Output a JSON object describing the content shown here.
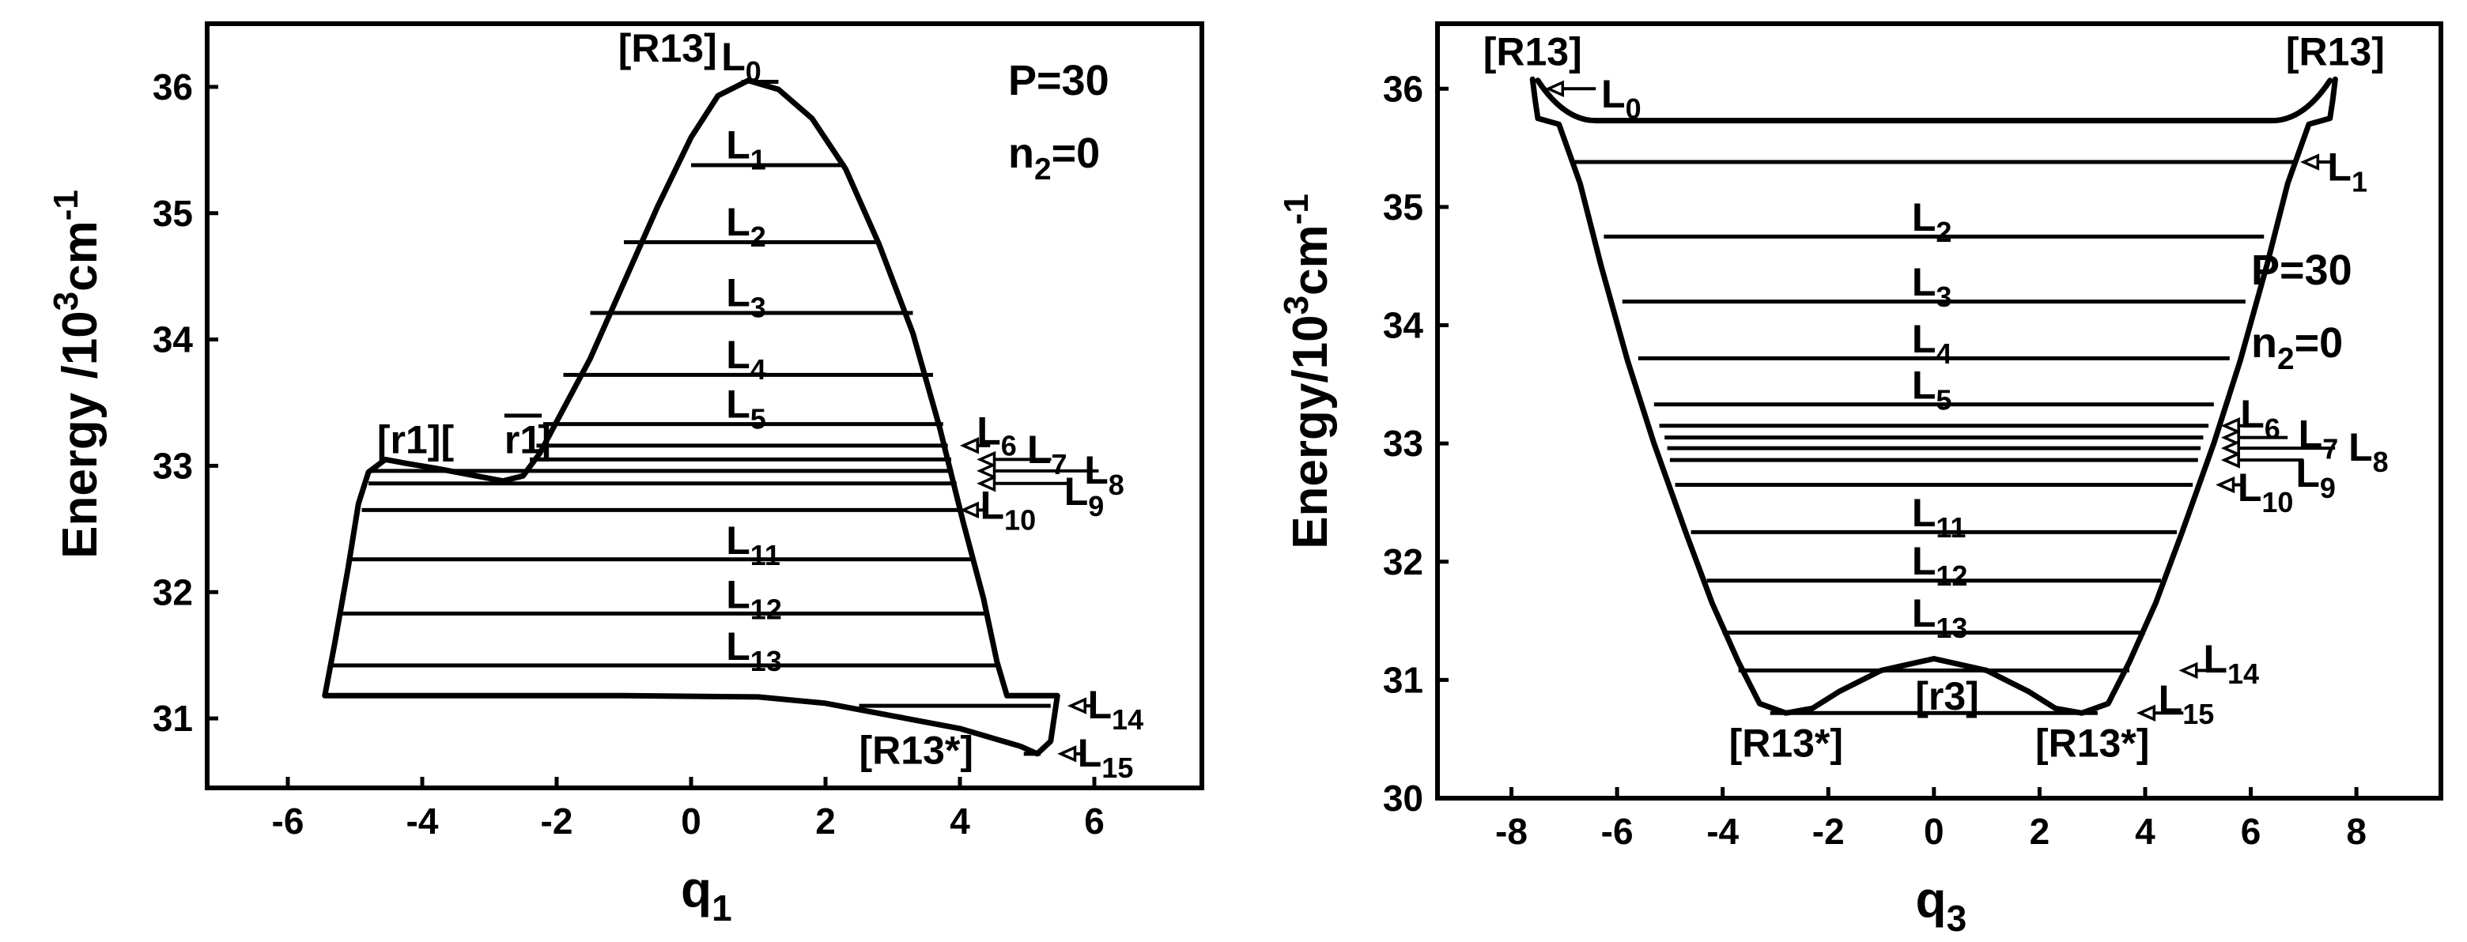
{
  "chart_data": [
    {
      "type": "line",
      "panel": "left",
      "title": "",
      "xlabel": "q",
      "xlabel_sub": "1",
      "ylabel": "Energy /10",
      "ylabel_sup": "3",
      "ylabel_unit": "cm",
      "ylabel_unit_sup": "-1",
      "xlim": [
        -7.2,
        7.6
      ],
      "ylim": [
        30.45,
        36.5
      ],
      "xticks": [
        -6,
        -4,
        -2,
        0,
        2,
        4,
        6
      ],
      "yticks": [
        31,
        32,
        33,
        34,
        35,
        36
      ],
      "params": [
        "P=30",
        "n2=0"
      ],
      "param_parts": [
        {
          "base": "P=30"
        },
        {
          "base": "n",
          "sub": "2",
          "rest": "=0"
        }
      ],
      "curve_upper": [
        [
          -5.45,
          31.18
        ],
        [
          -5.3,
          31.6
        ],
        [
          -5.1,
          32.2
        ],
        [
          -4.95,
          32.7
        ],
        [
          -4.8,
          32.95
        ],
        [
          -4.55,
          33.05
        ],
        [
          -4.25,
          33.02
        ],
        [
          -3.8,
          32.98
        ],
        [
          -3.2,
          32.92
        ],
        [
          -2.8,
          32.88
        ],
        [
          -2.5,
          32.92
        ],
        [
          -2.25,
          33.1
        ],
        [
          -2.0,
          33.35
        ],
        [
          -1.5,
          33.85
        ],
        [
          -1.0,
          34.45
        ],
        [
          -0.5,
          35.05
        ],
        [
          0.0,
          35.6
        ],
        [
          0.4,
          35.93
        ],
        [
          0.85,
          36.05
        ],
        [
          1.3,
          35.98
        ],
        [
          1.8,
          35.75
        ],
        [
          2.3,
          35.35
        ],
        [
          2.8,
          34.75
        ],
        [
          3.3,
          34.05
        ],
        [
          3.7,
          33.3
        ],
        [
          4.05,
          32.55
        ],
        [
          4.35,
          31.95
        ],
        [
          4.55,
          31.45
        ],
        [
          4.7,
          31.18
        ],
        [
          5.45,
          31.18
        ],
        [
          5.35,
          30.82
        ],
        [
          5.15,
          30.72
        ],
        [
          4.9,
          30.78
        ],
        [
          4.0,
          30.92
        ],
        [
          3.0,
          31.02
        ],
        [
          2.0,
          31.12
        ],
        [
          1.0,
          31.17
        ],
        [
          -1.0,
          31.18
        ],
        [
          -5.45,
          31.18
        ]
      ],
      "levels": [
        {
          "name": "L0",
          "base": "L",
          "sub": "0",
          "energy": 36.04,
          "x": [
            0.75,
            1.3
          ]
        },
        {
          "name": "L1",
          "base": "L",
          "sub": "1",
          "energy": 35.38,
          "x": [
            0.0,
            2.3
          ]
        },
        {
          "name": "L2",
          "base": "L",
          "sub": "2",
          "energy": 34.77,
          "x": [
            -1.0,
            2.8
          ]
        },
        {
          "name": "L3",
          "base": "L",
          "sub": "3",
          "energy": 34.21,
          "x": [
            -1.5,
            3.3
          ]
        },
        {
          "name": "L4",
          "base": "L",
          "sub": "4",
          "energy": 33.72,
          "x": [
            -1.9,
            3.6
          ]
        },
        {
          "name": "L5",
          "base": "L",
          "sub": "5",
          "energy": 33.33,
          "x": [
            -2.2,
            3.75
          ]
        },
        {
          "name": "L6",
          "base": "L",
          "sub": "6",
          "energy": 33.16,
          "x": [
            -2.3,
            3.82
          ]
        },
        {
          "name": "L7",
          "base": "L",
          "sub": "7",
          "energy": 33.05,
          "x": [
            -2.4,
            3.87
          ]
        },
        {
          "name": "L8",
          "base": "L",
          "sub": "8",
          "energy": 32.96,
          "x": [
            -4.75,
            3.9
          ]
        },
        {
          "name": "L9",
          "base": "L",
          "sub": "9",
          "energy": 32.86,
          "x": [
            -4.8,
            3.95
          ]
        },
        {
          "name": "L10",
          "base": "L",
          "sub": "10",
          "energy": 32.65,
          "x": [
            -4.9,
            4.0
          ]
        },
        {
          "name": "L11",
          "base": "L",
          "sub": "11",
          "energy": 32.26,
          "x": [
            -5.05,
            4.2
          ]
        },
        {
          "name": "L12",
          "base": "L",
          "sub": "12",
          "energy": 31.83,
          "x": [
            -5.2,
            4.4
          ]
        },
        {
          "name": "L13",
          "base": "L",
          "sub": "13",
          "energy": 31.42,
          "x": [
            -5.35,
            4.6
          ]
        },
        {
          "name": "L14",
          "base": "L",
          "sub": "14",
          "energy": 31.1,
          "x": [
            2.5,
            5.35
          ]
        },
        {
          "name": "L15",
          "base": "L",
          "sub": "15",
          "energy": 30.72,
          "x": [
            4.95,
            5.2
          ]
        }
      ],
      "structure_labels": [
        {
          "name": "R13-top",
          "text": "[R13]",
          "x": -0.35,
          "y": 36.2
        },
        {
          "name": "r1",
          "text": "[r1][",
          "x": -4.1,
          "y": 33.1
        },
        {
          "name": "r1-bar",
          "text": "r1",
          "x": -2.5,
          "y": 33.1,
          "overline": true
        },
        {
          "name": "r1-close",
          "text": "]",
          "x": -2.18,
          "y": 33.1
        },
        {
          "name": "R13-star",
          "text": "[R13*]",
          "x": 3.35,
          "y": 30.64
        }
      ]
    },
    {
      "type": "line",
      "panel": "right",
      "title": "",
      "xlabel": "q",
      "xlabel_sub": "3",
      "ylabel": "Energy/10",
      "ylabel_sup": "3",
      "ylabel_unit": "cm",
      "ylabel_unit_sup": "-1",
      "xlim": [
        -9.4,
        9.6
      ],
      "ylim": [
        30.0,
        36.55
      ],
      "xticks": [
        -8,
        -6,
        -4,
        -2,
        0,
        2,
        4,
        6,
        8
      ],
      "yticks": [
        30,
        31,
        32,
        33,
        34,
        35,
        36
      ],
      "params": [
        "P=30",
        "n2=0"
      ],
      "param_parts": [
        {
          "base": "P=30"
        },
        {
          "base": "n",
          "sub": "2",
          "rest": "=0"
        }
      ],
      "curve": [
        [
          -7.6,
          36.08
        ],
        [
          -7.55,
          35.9
        ],
        [
          -7.5,
          35.75
        ],
        [
          -7.1,
          35.7
        ],
        [
          -6.7,
          35.2
        ],
        [
          -6.3,
          34.5
        ],
        [
          -5.8,
          33.7
        ],
        [
          -5.3,
          33.0
        ],
        [
          -4.7,
          32.25
        ],
        [
          -4.2,
          31.65
        ],
        [
          -3.7,
          31.15
        ],
        [
          -3.3,
          30.8
        ],
        [
          -2.8,
          30.72
        ],
        [
          -2.3,
          30.76
        ],
        [
          -1.8,
          30.9
        ],
        [
          -1.0,
          31.08
        ],
        [
          0.0,
          31.18
        ],
        [
          1.0,
          31.08
        ],
        [
          1.8,
          30.9
        ],
        [
          2.3,
          30.76
        ],
        [
          2.8,
          30.72
        ],
        [
          3.3,
          30.8
        ],
        [
          3.7,
          31.15
        ],
        [
          4.2,
          31.65
        ],
        [
          4.7,
          32.25
        ],
        [
          5.3,
          33.0
        ],
        [
          5.8,
          33.7
        ],
        [
          6.3,
          34.5
        ],
        [
          6.7,
          35.2
        ],
        [
          7.1,
          35.7
        ],
        [
          7.5,
          35.75
        ],
        [
          7.55,
          35.9
        ],
        [
          7.6,
          36.08
        ]
      ],
      "levels": [
        {
          "name": "L0",
          "base": "L",
          "sub": "0",
          "energy": 35.73,
          "x": [
            -6.4,
            6.4
          ],
          "dip": true
        },
        {
          "name": "L1",
          "base": "L",
          "sub": "1",
          "energy": 35.38,
          "x": [
            -6.8,
            6.8
          ]
        },
        {
          "name": "L2",
          "base": "L",
          "sub": "2",
          "energy": 34.75,
          "x": [
            -6.25,
            6.25
          ]
        },
        {
          "name": "L3",
          "base": "L",
          "sub": "3",
          "energy": 34.2,
          "x": [
            -5.9,
            5.9
          ]
        },
        {
          "name": "L4",
          "base": "L",
          "sub": "4",
          "energy": 33.72,
          "x": [
            -5.6,
            5.6
          ]
        },
        {
          "name": "L5",
          "base": "L",
          "sub": "5",
          "energy": 33.33,
          "x": [
            -5.3,
            5.3
          ]
        },
        {
          "name": "L6",
          "base": "L",
          "sub": "6",
          "energy": 33.15,
          "x": [
            -5.2,
            5.2
          ]
        },
        {
          "name": "L7",
          "base": "L",
          "sub": "7",
          "energy": 33.05,
          "x": [
            -5.1,
            5.1
          ]
        },
        {
          "name": "L8",
          "base": "L",
          "sub": "8",
          "energy": 32.96,
          "x": [
            -5.05,
            5.05
          ]
        },
        {
          "name": "L9",
          "base": "L",
          "sub": "9",
          "energy": 32.86,
          "x": [
            -5.0,
            5.0
          ]
        },
        {
          "name": "L10",
          "base": "L",
          "sub": "10",
          "energy": 32.65,
          "x": [
            -4.9,
            4.9
          ]
        },
        {
          "name": "L11",
          "base": "L",
          "sub": "11",
          "energy": 32.25,
          "x": [
            -4.6,
            4.6
          ]
        },
        {
          "name": "L12",
          "base": "L",
          "sub": "12",
          "energy": 31.84,
          "x": [
            -4.3,
            4.3
          ]
        },
        {
          "name": "L13",
          "base": "L",
          "sub": "13",
          "energy": 31.4,
          "x": [
            -4.0,
            4.0
          ]
        },
        {
          "name": "L14",
          "base": "L",
          "sub": "14",
          "energy": 31.08,
          "x": [
            -3.7,
            3.7
          ]
        },
        {
          "name": "L15",
          "base": "L",
          "sub": "15",
          "energy": 30.72,
          "x": [
            -3.1,
            3.1
          ]
        }
      ],
      "structure_labels": [
        {
          "name": "R13-top-left",
          "text": "[R13]",
          "x": -7.6,
          "y": 36.2
        },
        {
          "name": "R13-top-right",
          "text": "[R13]",
          "x": 7.6,
          "y": 36.2
        },
        {
          "name": "r3",
          "text": "[r3]",
          "x": 0.25,
          "y": 30.75
        },
        {
          "name": "R13-star-left",
          "text": "[R13*]",
          "x": -2.8,
          "y": 30.35
        },
        {
          "name": "R13-star-right",
          "text": "[R13*]",
          "x": 3.0,
          "y": 30.35
        }
      ]
    }
  ]
}
